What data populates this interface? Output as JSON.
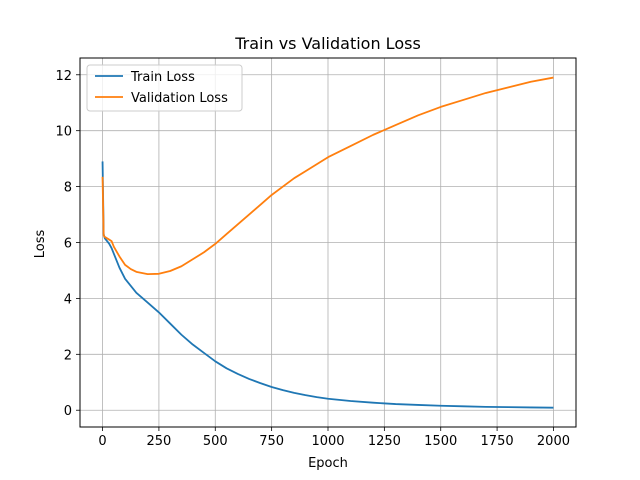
{
  "chart_data": {
    "type": "line",
    "title": "Train vs Validation Loss",
    "xlabel": "Epoch",
    "ylabel": "Loss",
    "xlim": [
      -100,
      2100
    ],
    "ylim": [
      -0.6,
      12.6
    ],
    "xticks": [
      0,
      250,
      500,
      750,
      1000,
      1250,
      1500,
      1750,
      2000
    ],
    "yticks": [
      0,
      2,
      4,
      6,
      8,
      10,
      12
    ],
    "grid": true,
    "legend_position": "top-left",
    "series": [
      {
        "name": "Train Loss",
        "color": "#1f77b4",
        "x": [
          0,
          5,
          10,
          20,
          30,
          40,
          50,
          75,
          100,
          125,
          150,
          200,
          250,
          300,
          350,
          400,
          450,
          500,
          550,
          600,
          650,
          700,
          750,
          800,
          850,
          900,
          950,
          1000,
          1100,
          1200,
          1300,
          1400,
          1500,
          1600,
          1700,
          1800,
          1900,
          2000
        ],
        "y": [
          8.9,
          6.3,
          6.15,
          6.05,
          5.95,
          5.8,
          5.6,
          5.1,
          4.7,
          4.45,
          4.2,
          3.85,
          3.5,
          3.1,
          2.7,
          2.35,
          2.05,
          1.75,
          1.5,
          1.3,
          1.12,
          0.97,
          0.83,
          0.72,
          0.62,
          0.54,
          0.47,
          0.41,
          0.33,
          0.27,
          0.22,
          0.19,
          0.16,
          0.14,
          0.12,
          0.11,
          0.1,
          0.09
        ]
      },
      {
        "name": "Validation Loss",
        "color": "#ff7f0e",
        "x": [
          0,
          5,
          10,
          20,
          30,
          40,
          50,
          75,
          100,
          125,
          150,
          200,
          250,
          300,
          350,
          400,
          450,
          500,
          550,
          600,
          650,
          700,
          750,
          800,
          850,
          900,
          950,
          1000,
          1100,
          1200,
          1300,
          1400,
          1500,
          1600,
          1700,
          1800,
          1900,
          2000
        ],
        "y": [
          8.35,
          6.25,
          6.2,
          6.15,
          6.1,
          6.05,
          5.85,
          5.5,
          5.2,
          5.05,
          4.95,
          4.87,
          4.88,
          4.98,
          5.15,
          5.4,
          5.65,
          5.95,
          6.3,
          6.65,
          7.0,
          7.35,
          7.7,
          8.0,
          8.3,
          8.55,
          8.8,
          9.05,
          9.45,
          9.85,
          10.2,
          10.55,
          10.85,
          11.1,
          11.35,
          11.55,
          11.75,
          11.9
        ]
      }
    ]
  }
}
